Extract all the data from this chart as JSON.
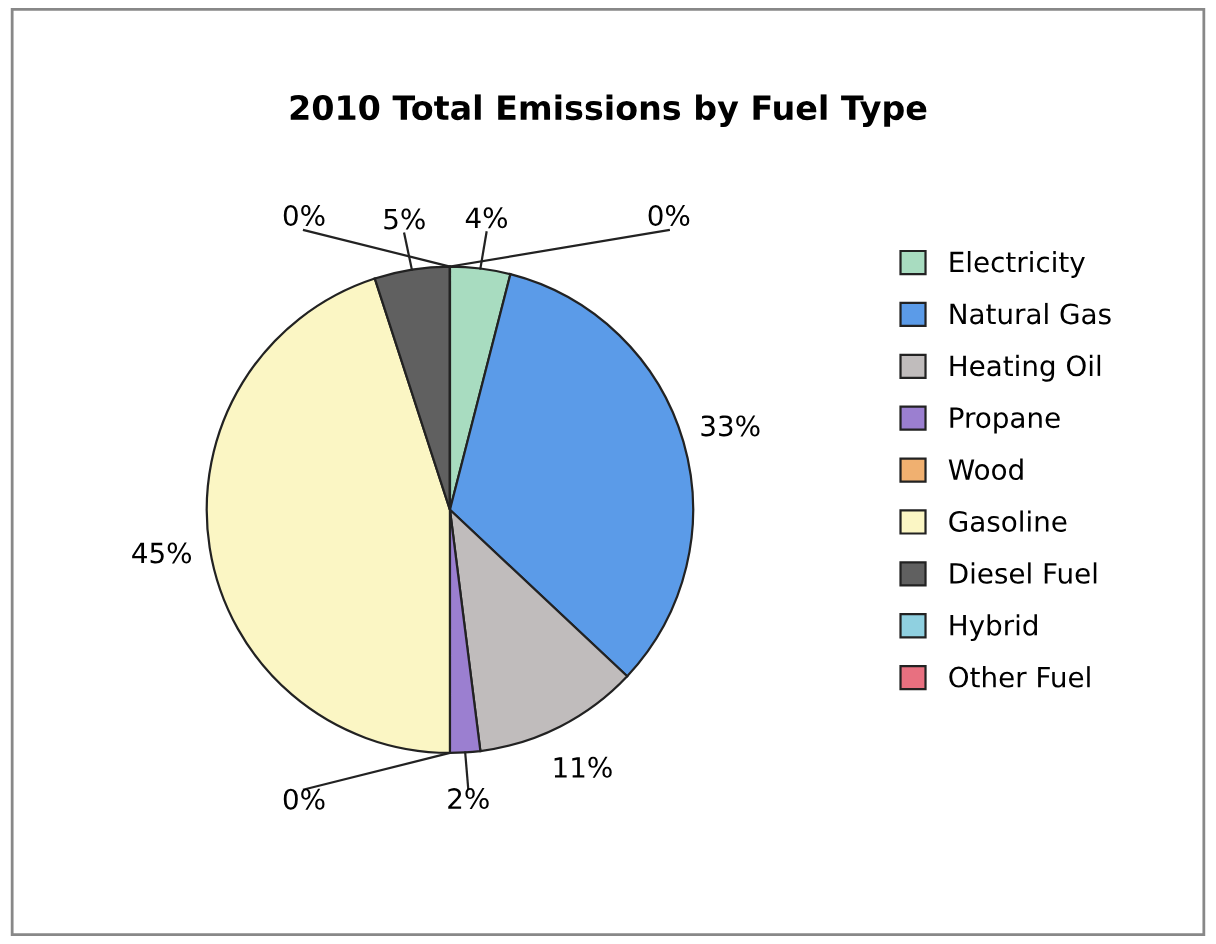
{
  "chart_data": {
    "type": "pie",
    "title": "2010 Total Emissions by Fuel Type",
    "categories": [
      "Electricity",
      "Natural Gas",
      "Heating Oil",
      "Propane",
      "Wood",
      "Gasoline",
      "Diesel Fuel",
      "Hybrid",
      "Other Fuel"
    ],
    "values": [
      4,
      33,
      11,
      2,
      0,
      45,
      5,
      0,
      0
    ],
    "colors": [
      "#a8dcc0",
      "#5b9be8",
      "#c0bcbc",
      "#9b7fd0",
      "#f0b070",
      "#fbf6c4",
      "#606060",
      "#8fd0e0",
      "#e87080"
    ],
    "value_labels": [
      "4%",
      "33%",
      "11%",
      "2%",
      "0%",
      "45%",
      "5%",
      "0%",
      "0%"
    ],
    "legend": "right"
  }
}
